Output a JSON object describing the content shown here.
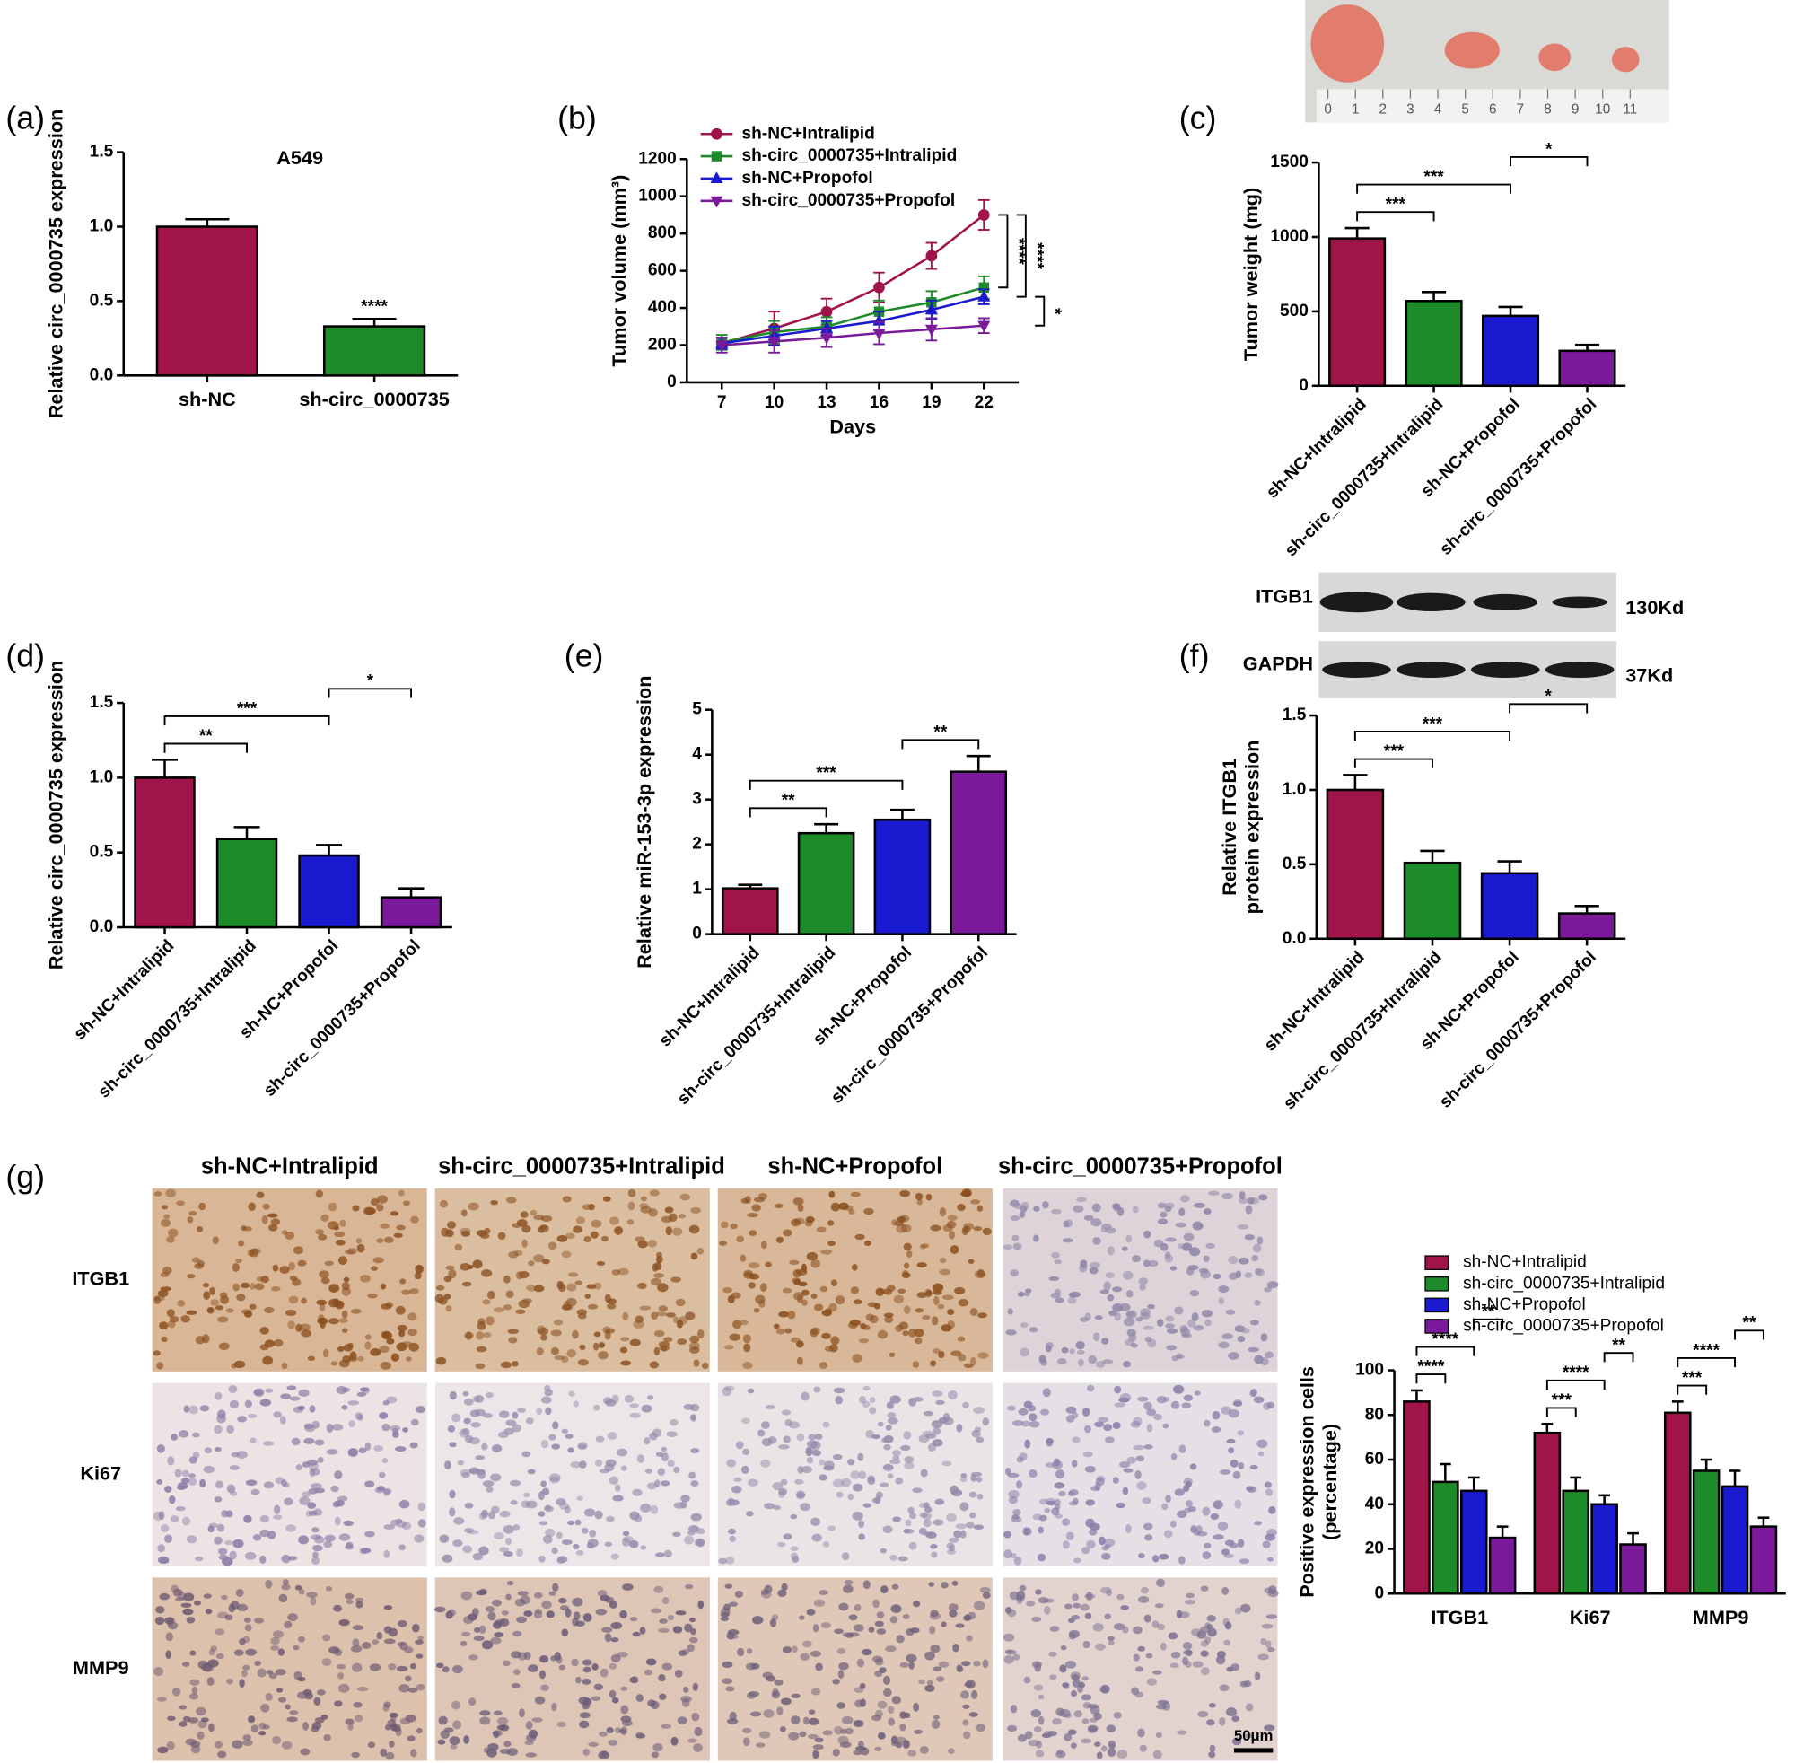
{
  "panel_labels": [
    "(a)",
    "(b)",
    "(c)",
    "(d)",
    "(e)",
    "(f)",
    "(g)"
  ],
  "tumor_photo": {
    "ruler_labels": [
      0,
      1,
      2,
      3,
      4,
      5,
      6,
      7,
      8,
      9,
      10,
      11
    ]
  },
  "blot": {
    "rows": [
      {
        "protein": "ITGB1",
        "size": "130Kd"
      },
      {
        "protein": "GAPDH",
        "size": "37Kd"
      }
    ]
  },
  "ihc": {
    "columns": [
      "sh-NC+Intralipid",
      "sh-circ_0000735+Intralipid",
      "sh-NC+Propofol",
      "sh-circ_0000735+Propofol"
    ],
    "rows": [
      "ITGB1",
      "Ki67",
      "MMP9"
    ],
    "scale_bar": "50μm"
  },
  "chart_data": [
    {
      "type": "bar",
      "title": "A549",
      "ylabel": "Relative circ_0000735 expression",
      "categories": [
        "sh-NC",
        "sh-circ_0000735"
      ],
      "values": [
        1.0,
        0.33
      ],
      "errors": [
        0.05,
        0.05
      ],
      "colors": [
        "#a0144a",
        "#1e8b2a"
      ],
      "ylim": [
        0,
        1.5
      ],
      "yticks": [
        {
          "value": 0,
          "label": "0.0"
        },
        0.5,
        {
          "value": 1,
          "label": "1.0"
        },
        1.5
      ],
      "annotations": [
        {
          "index": 1,
          "label": "****"
        }
      ]
    },
    {
      "type": "line",
      "ylabel": "Tumor volume (mm³)",
      "xlabel": "Days",
      "x": [
        7,
        10,
        13,
        16,
        19,
        22
      ],
      "xlim": [
        5,
        24
      ],
      "xticks": [
        7,
        10,
        13,
        16,
        19,
        22
      ],
      "ylim": [
        0,
        1200
      ],
      "yticks": [
        0,
        200,
        400,
        600,
        800,
        1000,
        1200
      ],
      "legend": "upper left",
      "series": [
        {
          "name": "sh-NC+Intralipid",
          "color": "#a0144a",
          "marker": "circle",
          "values": [
            210,
            290,
            380,
            510,
            680,
            900
          ],
          "errors": [
            30,
            90,
            70,
            80,
            70,
            80
          ]
        },
        {
          "name": "sh-circ_0000735+Intralipid",
          "color": "#1e8b2a",
          "marker": "square",
          "values": [
            215,
            270,
            300,
            380,
            430,
            510
          ],
          "errors": [
            40,
            60,
            50,
            60,
            60,
            60
          ]
        },
        {
          "name": "sh-NC+Propofol",
          "color": "#1a1ad0",
          "marker": "triangle",
          "values": [
            210,
            250,
            290,
            330,
            390,
            460
          ],
          "errors": [
            30,
            50,
            40,
            50,
            50,
            40
          ]
        },
        {
          "name": "sh-circ_0000735+Propofol",
          "color": "#7a1a9a",
          "marker": "triangle-down",
          "values": [
            200,
            220,
            240,
            265,
            285,
            305
          ],
          "errors": [
            40,
            60,
            50,
            60,
            60,
            40
          ]
        }
      ],
      "brackets": [
        {
          "pair": [
            0,
            1
          ],
          "label": "****"
        },
        {
          "pair": [
            0,
            2
          ],
          "label": "****"
        },
        {
          "pair": [
            2,
            3
          ],
          "label": "*"
        }
      ]
    },
    {
      "type": "bar",
      "ylabel": "Tumor weight (mg)",
      "categories": [
        "sh-NC+Intralipid",
        "sh-circ_0000735+Intralipid",
        "sh-NC+Propofol",
        "sh-circ_0000735+Propofol"
      ],
      "values": [
        990,
        570,
        470,
        235
      ],
      "errors": [
        70,
        60,
        60,
        40
      ],
      "colors": [
        "#a0144a",
        "#1e8b2a",
        "#1a1ad0",
        "#7a1a9a"
      ],
      "ylim": [
        0,
        1500
      ],
      "yticks": [
        0,
        500,
        1000,
        1500
      ],
      "brackets": [
        {
          "pair": [
            0,
            1
          ],
          "label": "***"
        },
        {
          "pair": [
            0,
            2
          ],
          "label": "***"
        },
        {
          "pair": [
            2,
            3
          ],
          "label": "*"
        }
      ]
    },
    {
      "type": "bar",
      "ylabel": "Relative circ_0000735 expression",
      "categories": [
        "sh-NC+Intralipid",
        "sh-circ_0000735+Intralipid",
        "sh-NC+Propofol",
        "sh-circ_0000735+Propofol"
      ],
      "values": [
        1.0,
        0.59,
        0.48,
        0.2
      ],
      "errors": [
        0.12,
        0.08,
        0.07,
        0.06
      ],
      "colors": [
        "#a0144a",
        "#1e8b2a",
        "#1a1ad0",
        "#7a1a9a"
      ],
      "ylim": [
        0,
        1.5
      ],
      "yticks": [
        {
          "value": 0,
          "label": "0.0"
        },
        0.5,
        {
          "value": 1,
          "label": "1.0"
        },
        1.5
      ],
      "brackets": [
        {
          "pair": [
            0,
            1
          ],
          "label": "**"
        },
        {
          "pair": [
            0,
            2
          ],
          "label": "***"
        },
        {
          "pair": [
            2,
            3
          ],
          "label": "*"
        }
      ]
    },
    {
      "type": "bar",
      "ylabel": "Relative miR-153-3p expression",
      "categories": [
        "sh-NC+Intralipid",
        "sh-circ_0000735+Intralipid",
        "sh-NC+Propofol",
        "sh-circ_0000735+Propofol"
      ],
      "values": [
        1.02,
        2.25,
        2.55,
        3.62
      ],
      "errors": [
        0.08,
        0.2,
        0.22,
        0.35
      ],
      "colors": [
        "#a0144a",
        "#1e8b2a",
        "#1a1ad0",
        "#7a1a9a"
      ],
      "ylim": [
        0,
        5
      ],
      "yticks": [
        0,
        1,
        2,
        3,
        4,
        5
      ],
      "brackets": [
        {
          "pair": [
            0,
            1
          ],
          "label": "**"
        },
        {
          "pair": [
            0,
            2
          ],
          "label": "***"
        },
        {
          "pair": [
            2,
            3
          ],
          "label": "**"
        }
      ]
    },
    {
      "type": "bar",
      "ylabel": [
        "Relative ITGB1",
        "protein expression"
      ],
      "categories": [
        "sh-NC+Intralipid",
        "sh-circ_0000735+Intralipid",
        "sh-NC+Propofol",
        "sh-circ_0000735+Propofol"
      ],
      "values": [
        1.0,
        0.51,
        0.44,
        0.17
      ],
      "errors": [
        0.1,
        0.08,
        0.08,
        0.05
      ],
      "colors": [
        "#a0144a",
        "#1e8b2a",
        "#1a1ad0",
        "#7a1a9a"
      ],
      "ylim": [
        0,
        1.5
      ],
      "yticks": [
        {
          "value": 0,
          "label": "0.0"
        },
        0.5,
        {
          "value": 1,
          "label": "1.0"
        },
        1.5
      ],
      "brackets": [
        {
          "pair": [
            0,
            1
          ],
          "label": "***"
        },
        {
          "pair": [
            0,
            2
          ],
          "label": "***"
        },
        {
          "pair": [
            2,
            3
          ],
          "label": "*"
        }
      ]
    },
    {
      "type": "grouped_bar",
      "ylabel": [
        "Positive expression cells",
        "(percentage)"
      ],
      "categories": [
        "ITGB1",
        "Ki67",
        "MMP9"
      ],
      "ylim": [
        0,
        100
      ],
      "yticks": [
        0,
        20,
        40,
        60,
        80,
        100
      ],
      "legend": "upper left",
      "series": [
        {
          "name": "sh-NC+Intralipid",
          "color": "#a0144a",
          "values": [
            86,
            72,
            81
          ],
          "errors": [
            5,
            4,
            5
          ]
        },
        {
          "name": "sh-circ_0000735+Intralipid",
          "color": "#1e8b2a",
          "values": [
            50,
            46,
            55
          ],
          "errors": [
            8,
            6,
            5
          ]
        },
        {
          "name": "sh-NC+Propofol",
          "color": "#1a1ad0",
          "values": [
            46,
            40,
            48
          ],
          "errors": [
            6,
            4,
            7
          ]
        },
        {
          "name": "sh-circ_0000735+Propofol",
          "color": "#7a1a9a",
          "values": [
            25,
            22,
            30
          ],
          "errors": [
            5,
            5,
            4
          ]
        }
      ],
      "brackets": [
        {
          "group": 0,
          "pair": [
            0,
            1
          ],
          "label": "****"
        },
        {
          "group": 0,
          "pair": [
            0,
            2
          ],
          "label": "****"
        },
        {
          "group": 0,
          "pair": [
            2,
            3
          ],
          "label": "**"
        },
        {
          "group": 1,
          "pair": [
            0,
            1
          ],
          "label": "***"
        },
        {
          "group": 1,
          "pair": [
            0,
            2
          ],
          "label": "****"
        },
        {
          "group": 1,
          "pair": [
            2,
            3
          ],
          "label": "**"
        },
        {
          "group": 2,
          "pair": [
            0,
            1
          ],
          "label": "***"
        },
        {
          "group": 2,
          "pair": [
            0,
            2
          ],
          "label": "****"
        },
        {
          "group": 2,
          "pair": [
            2,
            3
          ],
          "label": "**"
        }
      ]
    }
  ]
}
